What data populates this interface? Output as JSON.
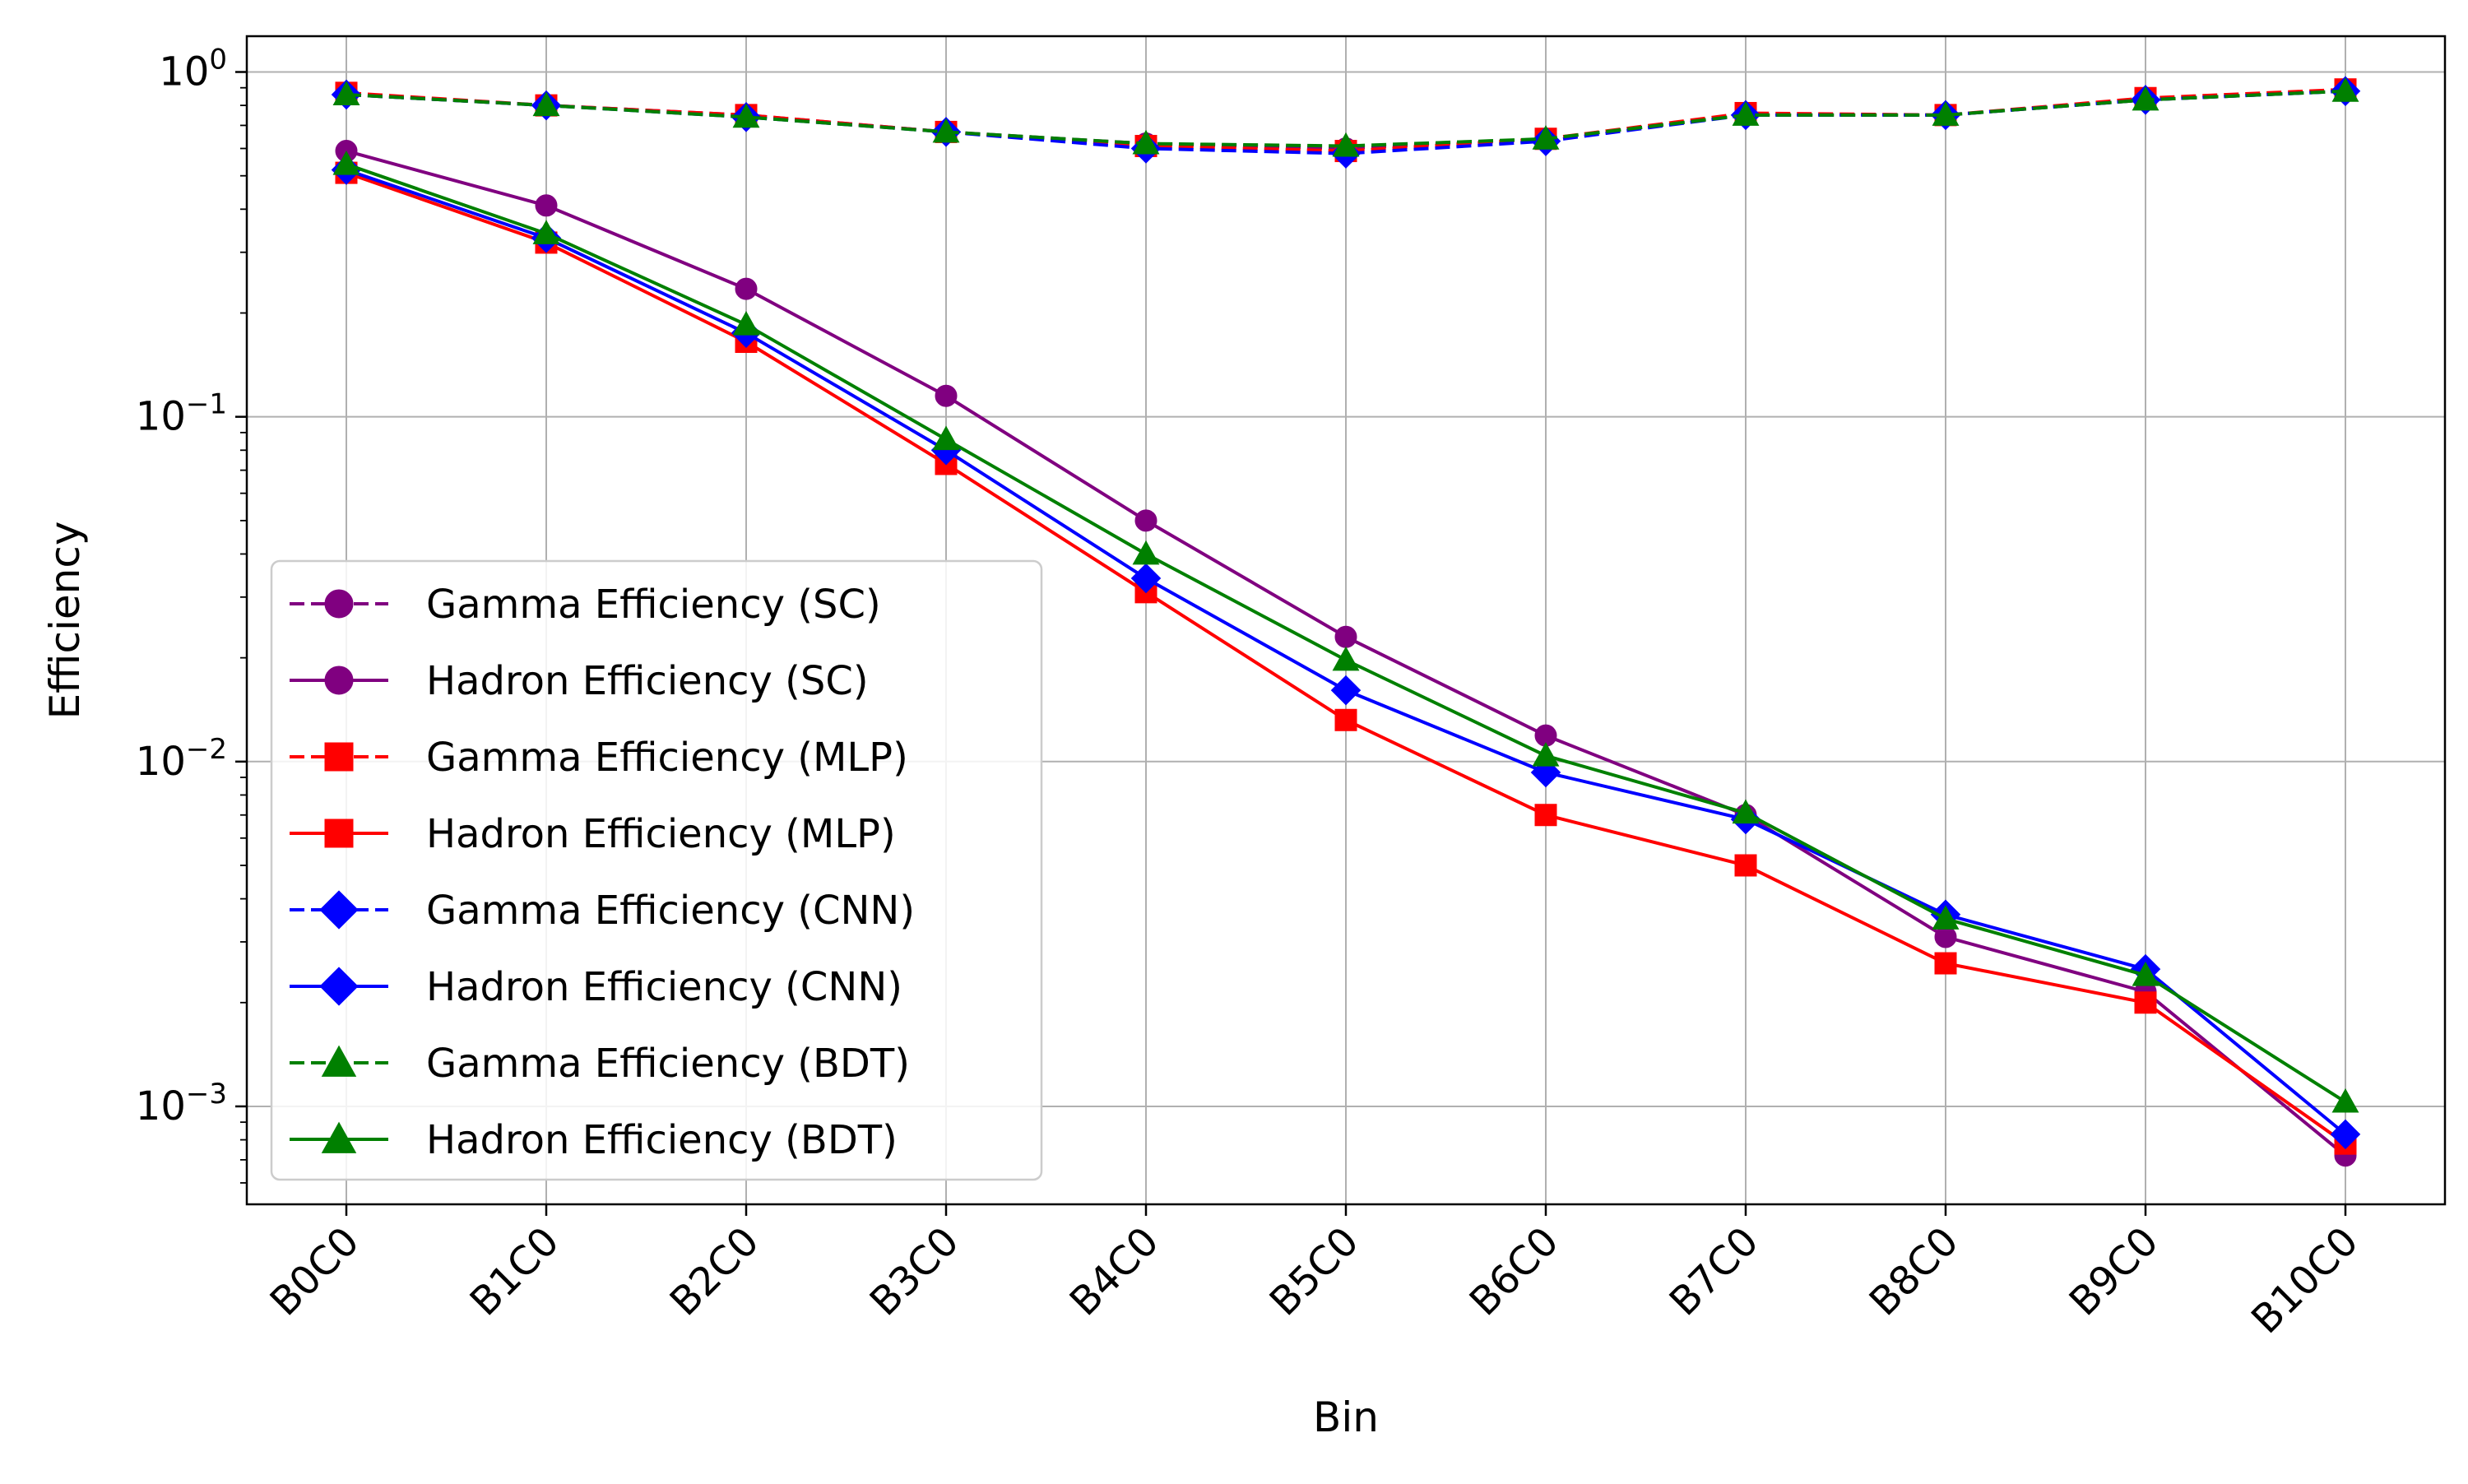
{
  "chart_data": {
    "type": "line",
    "xlabel": "Bin",
    "ylabel": "Efficiency",
    "yscale": "log",
    "ylim": [
      0.00052,
      1.27
    ],
    "grid": true,
    "legend_position": "lower-left",
    "categories": [
      "B0C0",
      "B1C0",
      "B2C0",
      "B3C0",
      "B4C0",
      "B5C0",
      "B6C0",
      "B7C0",
      "B8C0",
      "B9C0",
      "B10C0"
    ],
    "yticks": [
      {
        "value": 0.001,
        "base": "10",
        "exp": "−3"
      },
      {
        "value": 0.01,
        "base": "10",
        "exp": "−2"
      },
      {
        "value": 0.1,
        "base": "10",
        "exp": "−1"
      },
      {
        "value": 1,
        "base": "10",
        "exp": "0"
      }
    ],
    "series": [
      {
        "name": "Gamma Efficiency (SC)",
        "color": "#800080",
        "marker": "circle",
        "dashed": true,
        "values": [
          0.86,
          0.8,
          0.75,
          0.67,
          0.62,
          0.6,
          0.64,
          0.75,
          0.75,
          0.83,
          0.88
        ]
      },
      {
        "name": "Hadron Efficiency (SC)",
        "color": "#800080",
        "marker": "circle",
        "dashed": false,
        "values": [
          0.59,
          0.41,
          0.235,
          0.115,
          0.05,
          0.023,
          0.0119,
          0.007,
          0.0031,
          0.00215,
          0.00072
        ]
      },
      {
        "name": "Gamma Efficiency (MLP)",
        "color": "#ff0000",
        "marker": "square",
        "dashed": true,
        "values": [
          0.87,
          0.8,
          0.75,
          0.67,
          0.61,
          0.59,
          0.64,
          0.76,
          0.75,
          0.84,
          0.89
        ]
      },
      {
        "name": "Hadron Efficiency (MLP)",
        "color": "#ff0000",
        "marker": "square",
        "dashed": false,
        "values": [
          0.51,
          0.32,
          0.165,
          0.073,
          0.031,
          0.0132,
          0.007,
          0.005,
          0.0026,
          0.002,
          0.00078
        ]
      },
      {
        "name": "Gamma Efficiency (CNN)",
        "color": "#0000ff",
        "marker": "diamond",
        "dashed": true,
        "values": [
          0.86,
          0.8,
          0.74,
          0.67,
          0.6,
          0.58,
          0.63,
          0.75,
          0.75,
          0.83,
          0.88
        ]
      },
      {
        "name": "Hadron Efficiency (CNN)",
        "color": "#0000ff",
        "marker": "diamond",
        "dashed": false,
        "values": [
          0.52,
          0.33,
          0.175,
          0.08,
          0.034,
          0.0161,
          0.0093,
          0.0068,
          0.0036,
          0.0025,
          0.00083
        ]
      },
      {
        "name": "Gamma Efficiency (BDT)",
        "color": "#008000",
        "marker": "triangle",
        "dashed": true,
        "values": [
          0.86,
          0.8,
          0.74,
          0.67,
          0.62,
          0.61,
          0.64,
          0.75,
          0.75,
          0.83,
          0.88
        ]
      },
      {
        "name": "Hadron Efficiency (BDT)",
        "color": "#008000",
        "marker": "triangle",
        "dashed": false,
        "values": [
          0.54,
          0.34,
          0.185,
          0.086,
          0.04,
          0.0197,
          0.0104,
          0.0071,
          0.0035,
          0.0024,
          0.00103
        ]
      }
    ]
  }
}
